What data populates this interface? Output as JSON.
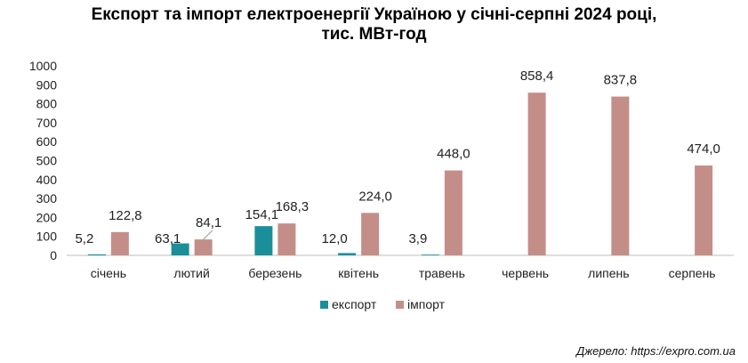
{
  "chart_data": {
    "type": "bar",
    "title_lines": [
      "Експорт та імпорт електроенергії Україною у січні-серпні 2024 році,",
      "тис. МВт-год"
    ],
    "categories": [
      "січень",
      "лютий",
      "березень",
      "квітень",
      "травень",
      "червень",
      "липень",
      "серпень"
    ],
    "series": [
      {
        "name": "експорт",
        "color": "#1a8f99",
        "values": [
          5.2,
          63.1,
          154.1,
          12.0,
          3.9,
          null,
          null,
          null
        ],
        "labels": [
          "5,2",
          "63,1",
          "154,1",
          "12,0",
          "3,9",
          "",
          "",
          ""
        ]
      },
      {
        "name": "імпорт",
        "color": "#c48e88",
        "values": [
          122.8,
          84.1,
          168.3,
          224.0,
          448.0,
          858.4,
          837.8,
          474.0
        ],
        "labels": [
          "122,8",
          "84,1",
          "168,3",
          "224,0",
          "448,0",
          "858,4",
          "837,8",
          "474,0"
        ]
      }
    ],
    "ylim": [
      0,
      1000
    ],
    "yticks": [
      "0",
      "100",
      "200",
      "300",
      "400",
      "500",
      "600",
      "700",
      "800",
      "900",
      "1000"
    ],
    "legend_position": "bottom",
    "grid": false
  },
  "source_note": "Джерело: https://expro.com.ua"
}
